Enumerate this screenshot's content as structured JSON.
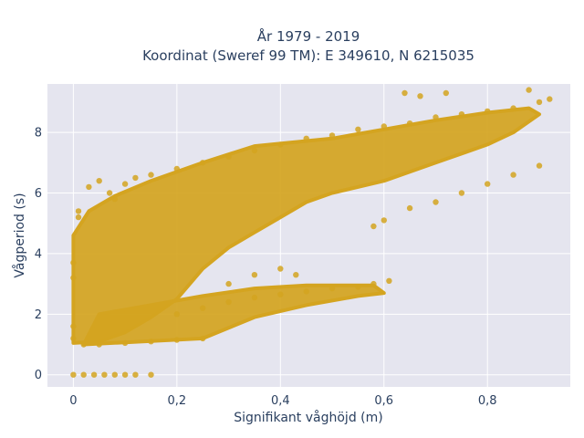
{
  "chart_data": {
    "type": "scatter",
    "title_line1": "År 1979 - 2019",
    "title_line2": "Koordinat (Sweref 99 TM): E 349610, N 6215035",
    "xlabel": "Signifikant våghöjd (m)",
    "ylabel": "Vågperiod (s)",
    "xlim": [
      -0.05,
      0.96
    ],
    "ylim": [
      -0.4,
      9.6
    ],
    "x_ticks": [
      0,
      0.2,
      0.4,
      0.6,
      0.8
    ],
    "x_tick_labels": [
      "0",
      "0,2",
      "0,4",
      "0,6",
      "0,8"
    ],
    "y_ticks": [
      0,
      2,
      4,
      6,
      8
    ],
    "y_tick_labels": [
      "0",
      "2",
      "4",
      "6",
      "8"
    ],
    "grid": true,
    "marker_color": "#d4a420",
    "plot_bg": "#e5e5ef",
    "series": [
      {
        "name": "",
        "points": [
          [
            0.0,
            0.0
          ],
          [
            0.02,
            0.0
          ],
          [
            0.04,
            0.0
          ],
          [
            0.06,
            0.0
          ],
          [
            0.08,
            0.0
          ],
          [
            0.1,
            0.0
          ],
          [
            0.12,
            0.0
          ],
          [
            0.15,
            0.0
          ],
          [
            0.0,
            1.2
          ],
          [
            0.0,
            1.6
          ],
          [
            0.0,
            3.2
          ],
          [
            0.0,
            3.7
          ],
          [
            0.01,
            5.2
          ],
          [
            0.01,
            5.4
          ],
          [
            0.02,
            1.0
          ],
          [
            0.05,
            1.0
          ],
          [
            0.1,
            1.05
          ],
          [
            0.15,
            1.1
          ],
          [
            0.2,
            1.15
          ],
          [
            0.25,
            1.2
          ],
          [
            0.03,
            6.2
          ],
          [
            0.05,
            6.4
          ],
          [
            0.07,
            6.0
          ],
          [
            0.1,
            6.3
          ],
          [
            0.12,
            6.5
          ],
          [
            0.08,
            5.8
          ],
          [
            0.15,
            6.6
          ],
          [
            0.2,
            6.8
          ],
          [
            0.25,
            7.0
          ],
          [
            0.3,
            7.2
          ],
          [
            0.35,
            7.4
          ],
          [
            0.4,
            7.6
          ],
          [
            0.45,
            7.8
          ],
          [
            0.5,
            7.9
          ],
          [
            0.55,
            8.1
          ],
          [
            0.6,
            8.2
          ],
          [
            0.65,
            8.3
          ],
          [
            0.7,
            8.5
          ],
          [
            0.75,
            8.6
          ],
          [
            0.8,
            8.7
          ],
          [
            0.85,
            8.8
          ],
          [
            0.9,
            9.0
          ],
          [
            0.92,
            9.1
          ],
          [
            0.2,
            2.0
          ],
          [
            0.25,
            2.2
          ],
          [
            0.3,
            2.4
          ],
          [
            0.35,
            2.55
          ],
          [
            0.4,
            2.65
          ],
          [
            0.45,
            2.75
          ],
          [
            0.5,
            2.85
          ],
          [
            0.55,
            2.9
          ],
          [
            0.58,
            3.0
          ],
          [
            0.61,
            3.1
          ],
          [
            0.4,
            3.5
          ],
          [
            0.43,
            3.3
          ],
          [
            0.35,
            3.3
          ],
          [
            0.3,
            3.0
          ],
          [
            0.58,
            4.9
          ],
          [
            0.6,
            5.1
          ],
          [
            0.65,
            5.5
          ],
          [
            0.7,
            5.7
          ],
          [
            0.75,
            6.0
          ],
          [
            0.8,
            6.3
          ],
          [
            0.85,
            6.6
          ],
          [
            0.9,
            6.9
          ],
          [
            0.64,
            9.3
          ],
          [
            0.67,
            9.2
          ],
          [
            0.72,
            9.3
          ],
          [
            0.88,
            9.4
          ]
        ]
      }
    ]
  }
}
